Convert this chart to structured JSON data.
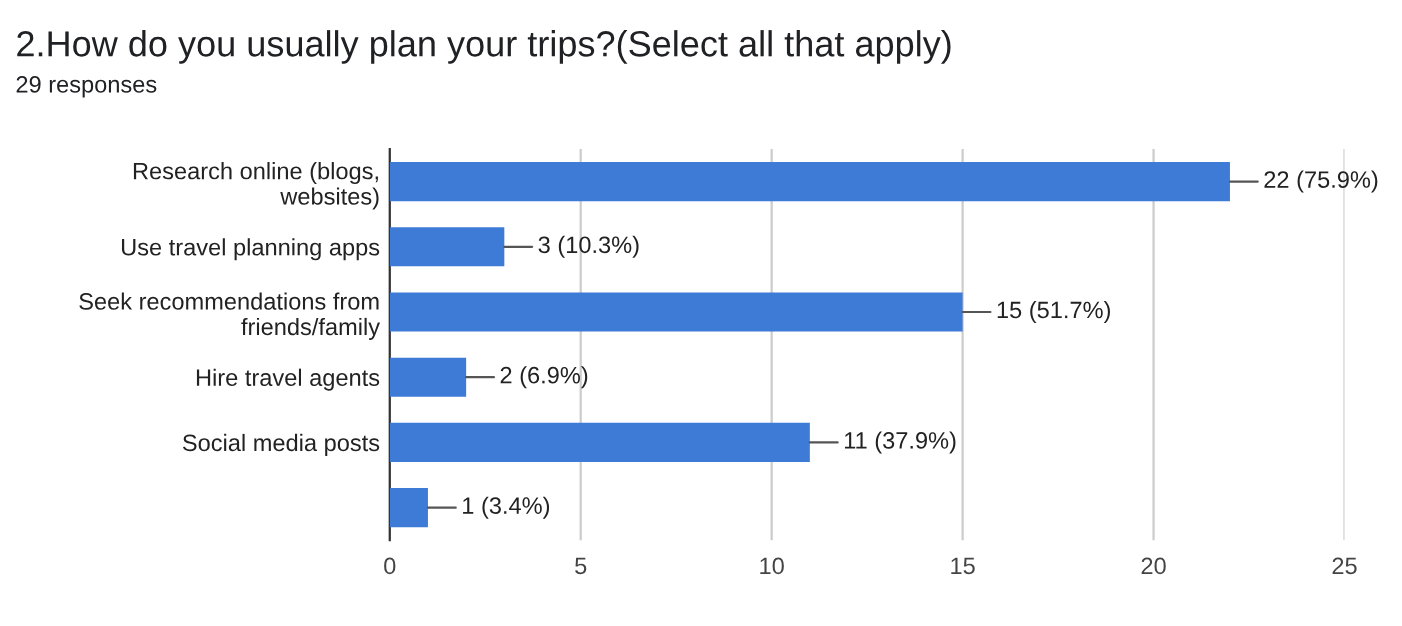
{
  "chart_data": {
    "type": "bar",
    "orientation": "horizontal",
    "title": "2.How do you usually plan your trips?(Select all that apply)",
    "subtitle": "29 responses",
    "categories": [
      "Research online (blogs,\nwebsites)",
      "Use travel planning apps",
      "Seek recommendations from\nfriends/family",
      "Hire travel agents",
      "Social media posts",
      null
    ],
    "values": [
      22,
      3,
      15,
      2,
      11,
      1
    ],
    "value_labels": [
      "22 (75.9%)",
      "3 (10.3%)",
      "15 (51.7%)",
      "2 (6.9%)",
      "11 (37.9%)",
      "1 (3.4%)"
    ],
    "color": "#3d7bd6",
    "xlim": [
      0,
      25
    ],
    "xticks": [
      0,
      5,
      10,
      15,
      20,
      25
    ],
    "grid": "x",
    "legend": false
  }
}
